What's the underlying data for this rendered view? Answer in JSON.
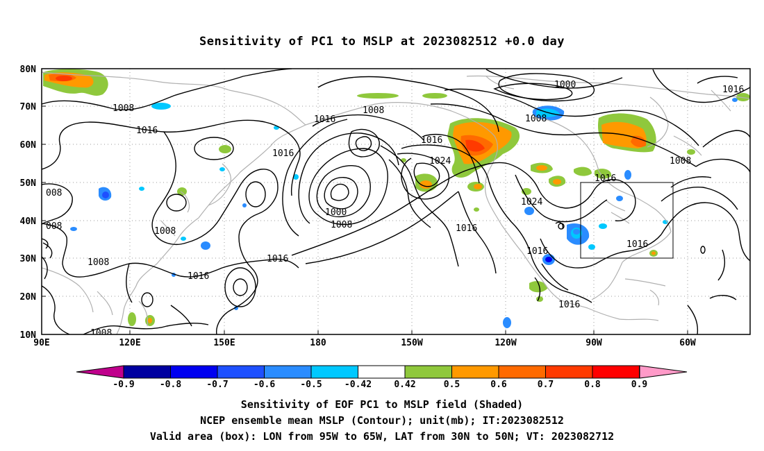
{
  "title": "Sensitivity of PC1 to MSLP at 2023082512 +0.0 day",
  "lat_labels": [
    "80N",
    "70N",
    "60N",
    "50N",
    "40N",
    "30N",
    "20N",
    "10N"
  ],
  "lon_labels": [
    "90E",
    "120E",
    "150E",
    "180",
    "150W",
    "120W",
    "90W",
    "60W"
  ],
  "contour_labels": [
    "1016",
    "1000",
    "1008",
    "1008",
    "1016",
    "1016",
    "1016",
    "1008",
    "1016",
    "1024",
    "1016",
    "008",
    "008",
    "1008",
    "1008",
    "1000",
    "1008",
    "1016",
    "1024",
    "1016",
    "1016",
    "1016",
    "1016",
    "1016",
    "1008",
    "1016",
    "1008",
    "1008"
  ],
  "colorbar": {
    "labels": [
      "-0.9",
      "-0.8",
      "-0.7",
      "-0.6",
      "-0.5",
      "-0.42",
      "0.42",
      "0.5",
      "0.6",
      "0.7",
      "0.8",
      "0.9"
    ],
    "colors": [
      "#0000a0",
      "#0000f0",
      "#1e50ff",
      "#2a8cff",
      "#00c8ff",
      "#ffffff",
      "#8fc83c",
      "#ff9900",
      "#ff6a00",
      "#ff3a00",
      "#ff0000"
    ],
    "left_triangle": "#c0008c",
    "right_triangle": "#ff9ac8"
  },
  "captions": [
    "Sensitivity of EOF PC1 to MSLP field (Shaded)",
    "NCEP ensemble mean MSLP (Contour); unit(mb); IT:2023082512",
    "Valid area (box): LON from 95W to 65W, LAT from 30N to 50N; VT: 2023082712"
  ],
  "valid_box": {
    "lon_w": -95,
    "lon_e": -65,
    "lat_s": 30,
    "lat_n": 50
  }
}
